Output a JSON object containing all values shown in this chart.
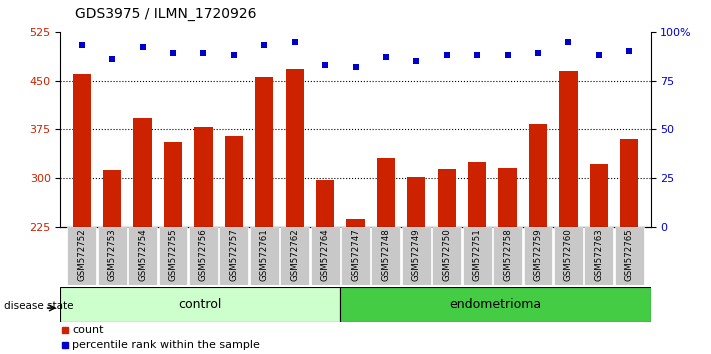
{
  "title": "GDS3975 / ILMN_1720926",
  "samples": [
    "GSM572752",
    "GSM572753",
    "GSM572754",
    "GSM572755",
    "GSM572756",
    "GSM572757",
    "GSM572761",
    "GSM572762",
    "GSM572764",
    "GSM572747",
    "GSM572748",
    "GSM572749",
    "GSM572750",
    "GSM572751",
    "GSM572758",
    "GSM572759",
    "GSM572760",
    "GSM572763",
    "GSM572765"
  ],
  "bar_values": [
    460,
    312,
    392,
    355,
    378,
    365,
    455,
    468,
    296,
    236,
    330,
    302,
    313,
    325,
    315,
    383,
    465,
    322,
    360
  ],
  "percentile_values": [
    93,
    86,
    92,
    89,
    89,
    88,
    93,
    95,
    83,
    82,
    87,
    85,
    88,
    88,
    88,
    89,
    95,
    88,
    90
  ],
  "group_labels": [
    "control",
    "endometrioma"
  ],
  "group_counts": [
    9,
    10
  ],
  "bar_color": "#cc2200",
  "pct_color": "#0000cc",
  "ylim_left": [
    225,
    525
  ],
  "ylim_right": [
    0,
    100
  ],
  "yticks_left": [
    225,
    300,
    375,
    450,
    525
  ],
  "yticks_right": [
    0,
    25,
    50,
    75,
    100
  ],
  "ytick_labels_right": [
    "0",
    "25",
    "50",
    "75",
    "100%"
  ],
  "grid_lines": [
    300,
    375,
    450
  ],
  "control_color": "#ccffcc",
  "endometrioma_color": "#44cc44",
  "legend_count_label": "count",
  "legend_pct_label": "percentile rank within the sample",
  "disease_state_label": "disease state"
}
